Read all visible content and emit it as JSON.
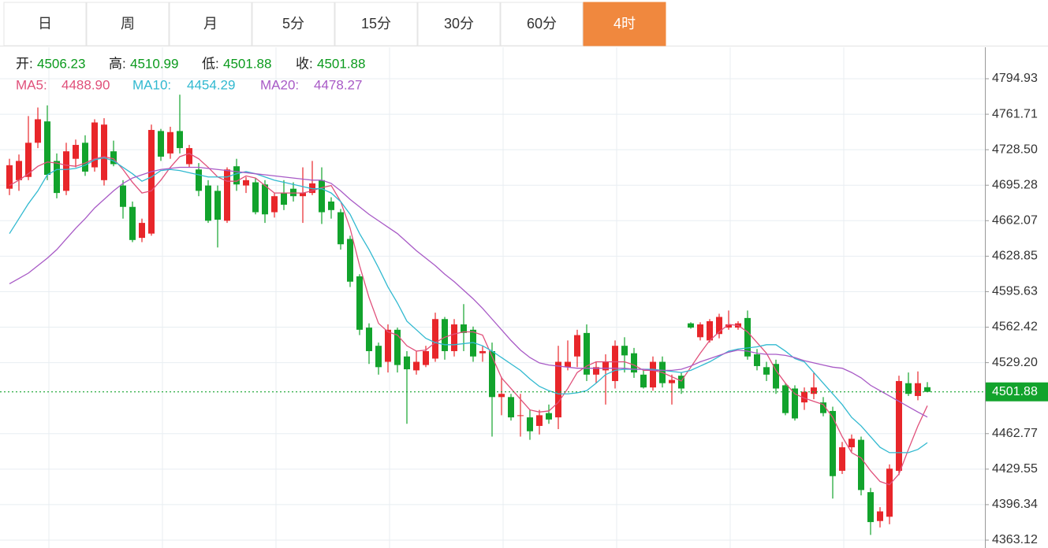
{
  "tabs": {
    "items": [
      "日",
      "周",
      "月",
      "5分",
      "15分",
      "30分",
      "60分",
      "4时"
    ],
    "active": 7
  },
  "chart_data": {
    "type": "candlestick",
    "ohlc_labels": [
      "开:",
      "高:",
      "低:",
      "收:"
    ],
    "up_color": "#e8262a",
    "down_color": "#12a32c",
    "open": [
      4692,
      4700,
      4703,
      4735,
      4755,
      4718,
      4690,
      4720,
      4735,
      4712,
      4700,
      4727,
      4695,
      4675,
      4646,
      4650,
      4746,
      4725,
      4746,
      4715,
      4710,
      4695,
      4690,
      4662,
      4713,
      4695,
      4698,
      4696,
      4670,
      4688,
      4692,
      4685,
      4688,
      4700,
      4680,
      4670,
      4645,
      4610,
      4562,
      4545,
      4530,
      4560,
      4535,
      4522,
      4527,
      4533,
      4570,
      4540,
      4565,
      4560,
      4538,
      4540,
      4497,
      4497,
      4480,
      4478,
      4470,
      4482,
      4478,
      4525,
      4535,
      4557,
      4518,
      4522,
      4512,
      4545,
      4538,
      4518,
      4506,
      4530,
      4510,
      4517,
      4566,
      4553,
      4550,
      4556,
      4562,
      4562,
      4571,
      4537,
      4525,
      4528,
      4508,
      4505,
      4492,
      4500,
      4492,
      4484,
      4428,
      4450,
      4457,
      4408,
      4381,
      4385,
      4428,
      4510,
      4498,
      4506.23
    ],
    "high": [
      4720,
      4724,
      4760,
      4768,
      4770,
      4725,
      4735,
      4738,
      4742,
      4757,
      4758,
      4737,
      4700,
      4680,
      4664,
      4752,
      4748,
      4750,
      4780,
      4733,
      4716,
      4700,
      4695,
      4712,
      4720,
      4703,
      4702,
      4700,
      4688,
      4700,
      4698,
      4712,
      4718,
      4712,
      4684,
      4673,
      4648,
      4612,
      4566,
      4548,
      4565,
      4562,
      4540,
      4540,
      4545,
      4576,
      4572,
      4570,
      4584,
      4563,
      4545,
      4548,
      4516,
      4500,
      4500,
      4485,
      4485,
      4490,
      4545,
      4550,
      4560,
      4565,
      4530,
      4537,
      4550,
      4553,
      4543,
      4522,
      4535,
      4535,
      4518,
      4520,
      4567,
      4567,
      4570,
      4575,
      4578,
      4568,
      4578,
      4542,
      4530,
      4532,
      4510,
      4508,
      4506,
      4520,
      4497,
      4488,
      4455,
      4462,
      4460,
      4412,
      4394,
      4434,
      4517,
      4520,
      4521,
      4510.99
    ],
    "low": [
      4686,
      4690,
      4700,
      4730,
      4700,
      4683,
      4686,
      4712,
      4704,
      4708,
      4695,
      4713,
      4664,
      4642,
      4642,
      4648,
      4718,
      4720,
      4725,
      4712,
      4685,
      4660,
      4637,
      4660,
      4690,
      4688,
      4668,
      4660,
      4665,
      4672,
      4680,
      4660,
      4686,
      4659,
      4664,
      4635,
      4600,
      4555,
      4528,
      4518,
      4520,
      4520,
      4472,
      4518,
      4525,
      4530,
      4532,
      4535,
      4540,
      4530,
      4530,
      4460,
      4480,
      4475,
      4460,
      4457,
      4462,
      4472,
      4467,
      4522,
      4525,
      4512,
      4510,
      4490,
      4505,
      4520,
      4515,
      4505,
      4503,
      4506,
      4490,
      4500,
      4561,
      4550,
      4548,
      4552,
      4560,
      4560,
      4532,
      4522,
      4512,
      4500,
      4480,
      4475,
      4485,
      4495,
      4479,
      4402,
      4425,
      4446,
      4405,
      4368,
      4375,
      4378,
      4424,
      4498,
      4494,
      4501.88
    ],
    "close": [
      4714,
      4718,
      4735,
      4757,
      4705,
      4688,
      4727,
      4733,
      4708,
      4754,
      4752,
      4715,
      4675,
      4644,
      4660,
      4747,
      4722,
      4745,
      4730,
      4730,
      4690,
      4662,
      4663,
      4710,
      4696,
      4700,
      4670,
      4668,
      4685,
      4677,
      4685,
      4688,
      4697,
      4670,
      4672,
      4640,
      4605,
      4560,
      4540,
      4525,
      4560,
      4527,
      4523,
      4530,
      4540,
      4570,
      4540,
      4565,
      4557,
      4535,
      4540,
      4497,
      4500,
      4478,
      4480,
      4465,
      4480,
      4476,
      4530,
      4530,
      4555,
      4518,
      4525,
      4530,
      4545,
      4536,
      4520,
      4506,
      4530,
      4510,
      4513,
      4505,
      4562,
      4565,
      4568,
      4572,
      4565,
      4566,
      4535,
      4526,
      4518,
      4505,
      4482,
      4477,
      4502,
      4506,
      4482,
      4423,
      4450,
      4458,
      4410,
      4380,
      4390,
      4430,
      4512,
      4500,
      4510,
      4501.88
    ],
    "ma": [
      {
        "name": "MA5:",
        "color": "#e0507a",
        "value_labels": {
          "97": "4488.90"
        },
        "values": [
          4695,
          4700,
          4706,
          4713,
          4717,
          4716,
          4714,
          4713,
          4716,
          4720,
          4722,
          4720,
          4710,
          4698,
          4688,
          4690,
          4700,
          4712,
          4722,
          4725,
          4720,
          4712,
          4703,
          4699,
          4699,
          4704,
          4702,
          4695,
          4688,
          4688,
          4688,
          4688,
          4690,
          4693,
          4695,
          4680,
          4655,
          4620,
          4590,
          4566,
          4558,
          4555,
          4545,
          4540,
          4541,
          4548,
          4553,
          4556,
          4558,
          4558,
          4555,
          4535,
          4515,
          4505,
          4495,
          4485,
          4483,
          4484,
          4492,
          4505,
          4520,
          4526,
          4530,
          4530,
          4530,
          4530,
          4527,
          4522,
          4522,
          4520,
          4516,
          4512,
          4525,
          4538,
          4550,
          4558,
          4565,
          4564,
          4558,
          4548,
          4538,
          4522,
          4510,
          4500,
          4496,
          4493,
          4490,
          4478,
          4460,
          4445,
          4440,
          4428,
          4418,
          4415,
          4425,
          4448,
          4470,
          4488.9
        ]
      },
      {
        "name": "MA10:",
        "color": "#31b9d0",
        "values": [
          4650,
          4664,
          4678,
          4690,
          4705,
          4710,
          4710,
          4711,
          4714,
          4719,
          4721,
          4718,
          4712,
          4706,
          4699,
          4703,
          4709,
          4710,
          4709,
          4707,
          4705,
          4703,
          4703,
          4703,
          4706,
          4708,
          4706,
          4703,
          4700,
          4698,
          4696,
          4694,
          4692,
          4692,
          4688,
          4680,
          4668,
          4650,
          4635,
          4618,
          4600,
          4585,
          4568,
          4560,
          4552,
          4548,
          4546,
          4546,
          4547,
          4548,
          4545,
          4540,
          4534,
          4528,
          4522,
          4514,
          4507,
          4503,
          4500,
          4500,
          4501,
          4503,
          4510,
          4518,
          4522,
          4523,
          4523,
          4523,
          4523,
          4522,
          4521,
          4520,
          4522,
          4526,
          4530,
          4535,
          4540,
          4542,
          4543,
          4544,
          4546,
          4546,
          4540,
          4533,
          4530,
          4520,
          4510,
          4500,
          4490,
          4478,
          4470,
          4460,
          4450,
          4445,
          4445,
          4445,
          4448,
          4454.29
        ]
      },
      {
        "name": "MA20:",
        "color": "#a85ac6",
        "values": [
          4603,
          4608,
          4613,
          4620,
          4627,
          4635,
          4645,
          4655,
          4664,
          4674,
          4682,
          4690,
          4697,
          4702,
          4705,
          4708,
          4710,
          4711,
          4712,
          4712,
          4712,
          4711,
          4710,
          4709,
          4708,
          4707,
          4706,
          4705,
          4704,
          4703,
          4702,
          4701,
          4700,
          4700,
          4697,
          4690,
          4682,
          4675,
          4668,
          4662,
          4656,
          4650,
          4642,
          4634,
          4627,
          4620,
          4612,
          4605,
          4597,
          4589,
          4580,
          4570,
          4560,
          4550,
          4541,
          4534,
          4529,
          4527,
          4526,
          4525,
          4524,
          4524,
          4524,
          4524,
          4524,
          4524,
          4523,
          4523,
          4522,
          4522,
          4522,
          4523,
          4526,
          4530,
          4533,
          4536,
          4539,
          4541,
          4540,
          4538,
          4537,
          4537,
          4536,
          4534,
          4531,
          4529,
          4527,
          4525,
          4524,
          4520,
          4515,
          4508,
          4503,
          4498,
          4493,
          4488,
          4483,
          4478.27
        ]
      }
    ],
    "ylim": [
      4355.75,
      4824.4
    ],
    "yticks": [
      {
        "value": 4794.93,
        "label": "4794.93"
      },
      {
        "value": 4761.71,
        "label": "4761.71"
      },
      {
        "value": 4728.5,
        "label": "4728.50"
      },
      {
        "value": 4695.28,
        "label": "4695.28"
      },
      {
        "value": 4662.07,
        "label": "4662.07"
      },
      {
        "value": 4628.85,
        "label": "4628.85"
      },
      {
        "value": 4595.63,
        "label": "4595.63"
      },
      {
        "value": 4562.42,
        "label": "4562.42"
      },
      {
        "value": 4529.2,
        "label": "4529.20"
      },
      {
        "value": 4462.77,
        "label": "4462.77"
      },
      {
        "value": 4429.55,
        "label": "4429.55"
      },
      {
        "value": 4396.34,
        "label": "4396.34"
      },
      {
        "value": 4363.12,
        "label": "4363.12"
      }
    ],
    "grid": true
  }
}
